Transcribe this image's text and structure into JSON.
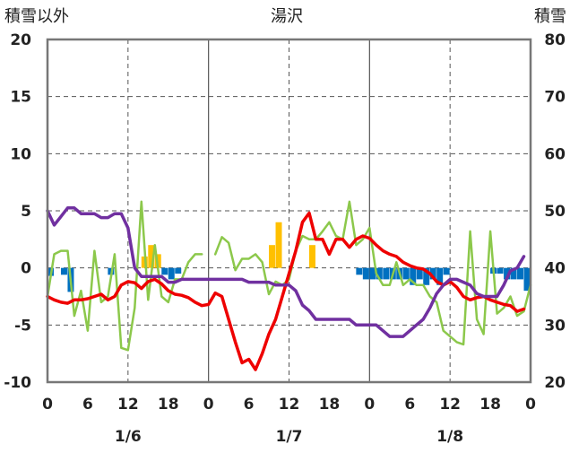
{
  "chart_data": {
    "type": "line",
    "title": "湯沢",
    "left_axis_label": "積雪以外",
    "right_axis_label": "積雪",
    "y_left": {
      "min": -10,
      "max": 20,
      "ticks": [
        20,
        15,
        10,
        5,
        0,
        -5,
        -10
      ]
    },
    "y_right": {
      "min": 20,
      "max": 80,
      "ticks": [
        80,
        70,
        60,
        50,
        40,
        30,
        20
      ]
    },
    "x": {
      "min": 0,
      "max": 72,
      "unit": "hours"
    },
    "x_tick_labels": [
      {
        "h": 0,
        "label": "0"
      },
      {
        "h": 6,
        "label": "6"
      },
      {
        "h": 12,
        "label": "12"
      },
      {
        "h": 18,
        "label": "18"
      },
      {
        "h": 24,
        "label": "0"
      },
      {
        "h": 30,
        "label": "6"
      },
      {
        "h": 36,
        "label": "12"
      },
      {
        "h": 42,
        "label": "18"
      },
      {
        "h": 48,
        "label": "0"
      },
      {
        "h": 54,
        "label": "6"
      },
      {
        "h": 60,
        "label": "12"
      },
      {
        "h": 66,
        "label": "18"
      },
      {
        "h": 72,
        "label": "0"
      }
    ],
    "dates": [
      {
        "h": 12,
        "label": "1/6"
      },
      {
        "h": 36,
        "label": "1/7"
      },
      {
        "h": 60,
        "label": "1/8"
      }
    ],
    "day_lines": [
      24,
      48
    ],
    "half_day_lines": [
      12,
      36,
      60
    ],
    "colors": {
      "temperature": "#ee0000",
      "wind": "#8cc84b",
      "snow_depth": "#7030a0",
      "snowfall_pos": "#ffc000",
      "snowfall_neg": "#0070c0",
      "grid": "#555555",
      "frame": "#777777"
    },
    "temperature": [
      [
        0,
        -2.5
      ],
      [
        1,
        -2.8
      ],
      [
        2,
        -3
      ],
      [
        3,
        -3.1
      ],
      [
        4,
        -2.8
      ],
      [
        5,
        -2.8
      ],
      [
        6,
        -2.7
      ],
      [
        7,
        -2.5
      ],
      [
        8,
        -2.3
      ],
      [
        9,
        -2.8
      ],
      [
        10,
        -2.5
      ],
      [
        11,
        -1.5
      ],
      [
        12,
        -1.2
      ],
      [
        13,
        -1.3
      ],
      [
        14,
        -1.8
      ],
      [
        15,
        -1.2
      ],
      [
        16,
        -1.0
      ],
      [
        17,
        -1.4
      ],
      [
        18,
        -2.0
      ],
      [
        19,
        -2.3
      ],
      [
        20,
        -2.4
      ],
      [
        21,
        -2.6
      ],
      [
        22,
        -3.0
      ],
      [
        23,
        -3.3
      ],
      [
        24,
        -3.2
      ],
      [
        25,
        -2.2
      ],
      [
        26,
        -2.5
      ],
      [
        27,
        -4.5
      ],
      [
        28,
        -6.5
      ],
      [
        29,
        -8.3
      ],
      [
        30,
        -8.0
      ],
      [
        31,
        -8.9
      ],
      [
        32,
        -7.5
      ],
      [
        33,
        -5.8
      ],
      [
        34,
        -4.5
      ],
      [
        35,
        -2.5
      ],
      [
        36,
        -0.5
      ],
      [
        37,
        1.5
      ],
      [
        38,
        4.0
      ],
      [
        39,
        4.8
      ],
      [
        40,
        2.5
      ],
      [
        41,
        2.5
      ],
      [
        42,
        1.2
      ],
      [
        43,
        2.5
      ],
      [
        44,
        2.5
      ],
      [
        45,
        1.8
      ],
      [
        46,
        2.5
      ],
      [
        47,
        2.8
      ],
      [
        48,
        2.6
      ],
      [
        49,
        2.0
      ],
      [
        50,
        1.5
      ],
      [
        51,
        1.2
      ],
      [
        52,
        1.0
      ],
      [
        53,
        0.5
      ],
      [
        54,
        0.2
      ],
      [
        55,
        0
      ],
      [
        56,
        -0.1
      ],
      [
        57,
        -0.5
      ],
      [
        58,
        -1.2
      ],
      [
        59,
        -1.5
      ],
      [
        60,
        -1.2
      ],
      [
        61,
        -1.7
      ],
      [
        62,
        -2.5
      ],
      [
        63,
        -2.8
      ],
      [
        64,
        -2.6
      ],
      [
        65,
        -2.5
      ],
      [
        66,
        -2.8
      ],
      [
        67,
        -3.0
      ],
      [
        68,
        -3.2
      ],
      [
        69,
        -3.3
      ],
      [
        70,
        -3.8
      ],
      [
        71,
        -3.6
      ]
    ],
    "wind": [
      [
        0,
        -2.5
      ],
      [
        1,
        1.2
      ],
      [
        2,
        1.5
      ],
      [
        3,
        1.5
      ],
      [
        4,
        -4.2
      ],
      [
        5,
        -2
      ],
      [
        6,
        -5.5
      ],
      [
        7,
        1.5
      ],
      [
        8,
        -3
      ],
      [
        9,
        -2.5
      ],
      [
        10,
        1.2
      ],
      [
        11,
        -7
      ],
      [
        12,
        -7.2
      ],
      [
        13,
        -3.5
      ],
      [
        14,
        5.8
      ],
      [
        15,
        -2.8
      ],
      [
        16,
        2
      ],
      [
        17,
        -2.5
      ],
      [
        18,
        -3
      ],
      [
        19,
        -1
      ],
      [
        20,
        -1
      ],
      [
        21,
        0.5
      ],
      [
        22,
        1.2
      ],
      [
        23,
        1.2
      ],
      [
        24,
        null
      ],
      [
        25,
        1.2
      ],
      [
        26,
        2.7
      ],
      [
        27,
        2.2
      ],
      [
        28,
        -0.2
      ],
      [
        29,
        0.8
      ],
      [
        30,
        0.8
      ],
      [
        31,
        1.2
      ],
      [
        32,
        0.5
      ],
      [
        33,
        -2.3
      ],
      [
        34,
        -1.2
      ],
      [
        35,
        -1.5
      ],
      [
        36,
        -1
      ],
      [
        37,
        1.5
      ],
      [
        38,
        2.8
      ],
      [
        39,
        2.5
      ],
      [
        40,
        2.5
      ],
      [
        41,
        3.2
      ],
      [
        42,
        4
      ],
      [
        43,
        2.8
      ],
      [
        44,
        2.5
      ],
      [
        45,
        5.8
      ],
      [
        46,
        2.0
      ],
      [
        47,
        2.5
      ],
      [
        48,
        3.5
      ],
      [
        49,
        -0.5
      ],
      [
        50,
        -1.5
      ],
      [
        51,
        -1.5
      ],
      [
        52,
        0.5
      ],
      [
        53,
        -1.5
      ],
      [
        54,
        -1
      ],
      [
        55,
        -1.5
      ],
      [
        56,
        -1.5
      ],
      [
        57,
        -2.5
      ],
      [
        58,
        -3
      ],
      [
        59,
        -5.5
      ],
      [
        60,
        -6
      ],
      [
        61,
        -6.5
      ],
      [
        62,
        -6.7
      ],
      [
        63,
        3.2
      ],
      [
        64,
        -4.5
      ],
      [
        65,
        -5.8
      ],
      [
        66,
        3.2
      ],
      [
        67,
        -4
      ],
      [
        68,
        -3.5
      ],
      [
        69,
        -2.5
      ],
      [
        70,
        -4.2
      ],
      [
        71,
        -3.8
      ],
      [
        72,
        -1.5
      ]
    ],
    "snow_depth": [
      [
        0,
        50
      ],
      [
        1,
        47.5
      ],
      [
        2,
        49
      ],
      [
        3,
        50.5
      ],
      [
        4,
        50.5
      ],
      [
        5,
        49.5
      ],
      [
        6,
        49.5
      ],
      [
        7,
        49.5
      ],
      [
        8,
        48.8
      ],
      [
        9,
        48.8
      ],
      [
        10,
        49.5
      ],
      [
        11,
        49.5
      ],
      [
        12,
        47
      ],
      [
        13,
        40
      ],
      [
        14,
        38.5
      ],
      [
        15,
        38.5
      ],
      [
        16,
        38.5
      ],
      [
        17,
        38.5
      ],
      [
        18,
        37.5
      ],
      [
        19,
        37.5
      ],
      [
        20,
        38
      ],
      [
        21,
        38
      ],
      [
        22,
        38
      ],
      [
        23,
        38
      ],
      [
        24,
        38
      ],
      [
        25,
        38
      ],
      [
        26,
        38
      ],
      [
        27,
        38
      ],
      [
        28,
        38
      ],
      [
        29,
        38
      ],
      [
        30,
        37.5
      ],
      [
        31,
        37.5
      ],
      [
        32,
        37.5
      ],
      [
        33,
        37.5
      ],
      [
        34,
        37
      ],
      [
        35,
        37
      ],
      [
        36,
        37
      ],
      [
        37,
        36
      ],
      [
        38,
        33.5
      ],
      [
        39,
        32.5
      ],
      [
        40,
        31
      ],
      [
        41,
        31
      ],
      [
        42,
        31
      ],
      [
        43,
        31
      ],
      [
        44,
        31
      ],
      [
        45,
        31
      ],
      [
        46,
        30
      ],
      [
        47,
        30
      ],
      [
        48,
        30
      ],
      [
        49,
        30
      ],
      [
        50,
        29
      ],
      [
        51,
        28
      ],
      [
        52,
        28
      ],
      [
        53,
        28
      ],
      [
        54,
        29
      ],
      [
        55,
        30
      ],
      [
        56,
        31
      ],
      [
        57,
        33
      ],
      [
        58,
        35.5
      ],
      [
        59,
        37
      ],
      [
        60,
        38
      ],
      [
        61,
        38
      ],
      [
        62,
        37.5
      ],
      [
        63,
        37
      ],
      [
        64,
        35.5
      ],
      [
        65,
        35
      ],
      [
        66,
        35
      ],
      [
        67,
        35
      ],
      [
        68,
        37
      ],
      [
        69,
        39.5
      ],
      [
        70,
        40
      ],
      [
        71,
        42
      ]
    ],
    "snowfall": [
      [
        0,
        -0.7
      ],
      [
        2,
        -0.6
      ],
      [
        3,
        -2.1
      ],
      [
        9,
        -0.6
      ],
      [
        14,
        1.0
      ],
      [
        15,
        2.0
      ],
      [
        16,
        1.2
      ],
      [
        17,
        -0.6
      ],
      [
        18,
        -1.0
      ],
      [
        19,
        -0.5
      ],
      [
        33,
        2.0
      ],
      [
        34,
        4.0
      ],
      [
        39,
        2.0
      ],
      [
        46,
        -0.6
      ],
      [
        47,
        -1.0
      ],
      [
        48,
        -1.0
      ],
      [
        49,
        -1.0
      ],
      [
        50,
        -1.0
      ],
      [
        51,
        -1.0
      ],
      [
        52,
        -1.0
      ],
      [
        53,
        -1.0
      ],
      [
        54,
        -1.5
      ],
      [
        55,
        -1.0
      ],
      [
        56,
        -1.5
      ],
      [
        57,
        -1.0
      ],
      [
        58,
        -1.5
      ],
      [
        59,
        -0.6
      ],
      [
        66,
        -0.5
      ],
      [
        67,
        -0.5
      ],
      [
        68,
        -1.0
      ],
      [
        69,
        -1.0
      ],
      [
        70,
        -1.0
      ],
      [
        71,
        -2.0
      ]
    ]
  }
}
